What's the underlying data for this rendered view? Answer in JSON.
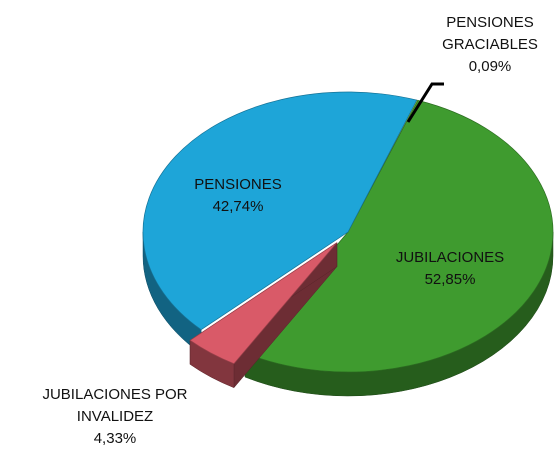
{
  "chart_data": {
    "type": "pie3d",
    "categories": [
      "PENSIONES GRACIABLES",
      "JUBILACIONES",
      "JUBILACIONES POR INVALIDEZ",
      "PENSIONES"
    ],
    "values": [
      0.09,
      52.85,
      4.33,
      42.74
    ],
    "value_labels": [
      "0,09%",
      "52,85%",
      "4,33%",
      "42,74%"
    ],
    "colors": [
      "#e4e23a",
      "#3f9b2f",
      "#d95a68",
      "#1ea5d8"
    ],
    "explode": [
      false,
      false,
      true,
      false
    ]
  }
}
